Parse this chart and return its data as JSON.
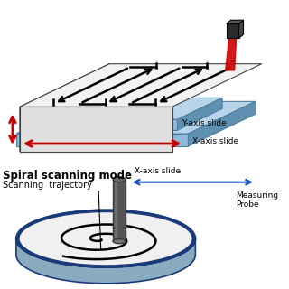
{
  "bg_color": "#ffffff",
  "slide_blue_light": "#b8d4e8",
  "slide_blue_mid": "#90b8d8",
  "slide_blue_dark": "#6090b0",
  "sample_white": "#f2f2f2",
  "sample_side_gray": "#d0d0d0",
  "sample_front_gray": "#e0e0e0",
  "disk_top": "#eeeeee",
  "disk_side": "#8aaac0",
  "disk_edge": "#1a3a7a",
  "probe_dark": "#3a3a3a",
  "probe_mid": "#555555",
  "red_color": "#cc0000",
  "blue_arrow": "#1a50c0",
  "black": "#000000",
  "label_y_axis": "Y-axis slide",
  "label_x_axis": "X-axis slide",
  "label_spiral_title": "Spiral scanning mode",
  "label_trajectory": "Scanning  trajectory",
  "label_x_axis2": "X-axis slide",
  "label_probe": "Measuring\nProbe"
}
